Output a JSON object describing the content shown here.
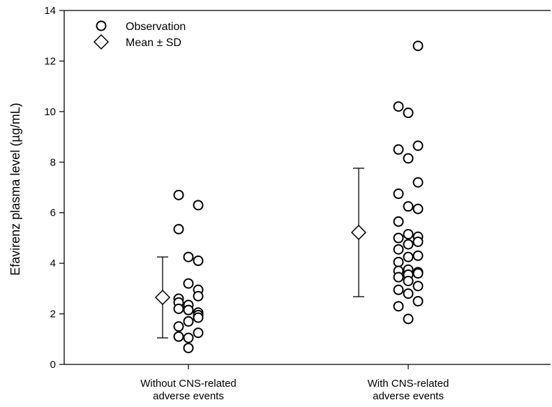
{
  "chart_data": {
    "type": "scatter",
    "title": "",
    "xlabel": "",
    "ylabel": "Efavirenz plasma level (µg/mL)",
    "ylim": [
      0,
      14
    ],
    "yticks": [
      0,
      2,
      4,
      6,
      8,
      10,
      12,
      14
    ],
    "grid": false,
    "legend_position": "top-left",
    "categories": [
      [
        "Without CNS-related",
        "adverse events"
      ],
      [
        "With CNS-related",
        "adverse events"
      ]
    ],
    "legend": [
      {
        "marker": "circle",
        "label": "Observation"
      },
      {
        "marker": "diamond",
        "label": "Mean ± SD"
      }
    ],
    "groups": [
      {
        "category_index": 0,
        "mean": 2.65,
        "sd_low": 1.05,
        "sd_high": 4.25,
        "observations": [
          {
            "y": 6.7,
            "col": 0
          },
          {
            "y": 6.3,
            "col": 1
          },
          {
            "y": 5.35,
            "col": 0
          },
          {
            "y": 4.25,
            "col": 0.5
          },
          {
            "y": 4.1,
            "col": 1
          },
          {
            "y": 3.2,
            "col": 0.5
          },
          {
            "y": 2.95,
            "col": 1
          },
          {
            "y": 2.7,
            "col": 1
          },
          {
            "y": 2.6,
            "col": 0
          },
          {
            "y": 2.45,
            "col": 0
          },
          {
            "y": 2.35,
            "col": 0.5
          },
          {
            "y": 2.2,
            "col": 0
          },
          {
            "y": 2.15,
            "col": 0.5
          },
          {
            "y": 2.05,
            "col": 1
          },
          {
            "y": 1.95,
            "col": 1
          },
          {
            "y": 1.85,
            "col": 1
          },
          {
            "y": 1.7,
            "col": 0.5
          },
          {
            "y": 1.5,
            "col": 0
          },
          {
            "y": 1.25,
            "col": 1
          },
          {
            "y": 1.1,
            "col": 0
          },
          {
            "y": 1.05,
            "col": 0.5
          },
          {
            "y": 0.65,
            "col": 0.5
          }
        ]
      },
      {
        "category_index": 1,
        "mean": 5.22,
        "sd_low": 2.68,
        "sd_high": 7.76,
        "observations": [
          {
            "y": 12.6,
            "col": 1
          },
          {
            "y": 10.2,
            "col": 0
          },
          {
            "y": 9.95,
            "col": 0.5
          },
          {
            "y": 8.65,
            "col": 1
          },
          {
            "y": 8.5,
            "col": 0
          },
          {
            "y": 8.15,
            "col": 0.5
          },
          {
            "y": 7.2,
            "col": 1
          },
          {
            "y": 6.75,
            "col": 0
          },
          {
            "y": 6.25,
            "col": 0.5
          },
          {
            "y": 6.15,
            "col": 1
          },
          {
            "y": 5.65,
            "col": 0
          },
          {
            "y": 5.15,
            "col": 0.5
          },
          {
            "y": 5.05,
            "col": 1
          },
          {
            "y": 5.0,
            "col": 0
          },
          {
            "y": 4.85,
            "col": 1
          },
          {
            "y": 4.75,
            "col": 0.5
          },
          {
            "y": 4.55,
            "col": 0
          },
          {
            "y": 4.3,
            "col": 1
          },
          {
            "y": 4.25,
            "col": 0.5
          },
          {
            "y": 4.05,
            "col": 0
          },
          {
            "y": 3.75,
            "col": 0.5
          },
          {
            "y": 3.65,
            "col": 1
          },
          {
            "y": 3.7,
            "col": 0
          },
          {
            "y": 3.6,
            "col": 1
          },
          {
            "y": 3.55,
            "col": 0.5
          },
          {
            "y": 3.45,
            "col": 0
          },
          {
            "y": 3.3,
            "col": 0.5
          },
          {
            "y": 3.1,
            "col": 1
          },
          {
            "y": 2.95,
            "col": 0
          },
          {
            "y": 2.8,
            "col": 0.5
          },
          {
            "y": 2.5,
            "col": 1
          },
          {
            "y": 2.3,
            "col": 0
          },
          {
            "y": 1.8,
            "col": 0.5
          }
        ]
      }
    ]
  }
}
